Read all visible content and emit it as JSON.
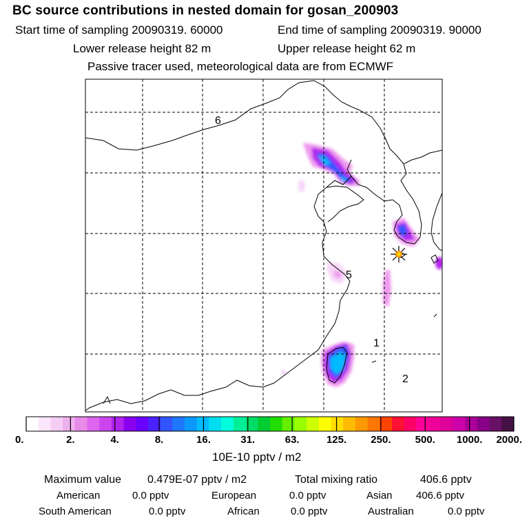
{
  "header": {
    "title": "BC  source contributions in nested domain for gosan_200903",
    "start_label": "Start time of sampling 20090319. 60000",
    "end_label": "End time of sampling 20090319. 90000",
    "lower_label": "Lower release height   82 m",
    "upper_label": "Upper release height   62 m",
    "tracer_label": "Passive tracer used, meteorological data are from ECMWF"
  },
  "chart_data": {
    "type": "heatmap",
    "title": "BC  source contributions in nested domain for gosan_200903",
    "region_labels": [
      "6",
      "5",
      "1",
      "2"
    ],
    "receptor": "gosan",
    "colorbar": {
      "ticks": [
        "0.",
        "2.",
        "4.",
        "8.",
        "16.",
        "31.",
        "63.",
        "125.",
        "250.",
        "500.",
        "1000.",
        "2000."
      ],
      "unit_label": "10E-10 pptv / m2",
      "colors": [
        "#ffffff",
        "#fbe6fb",
        "#f5cdf5",
        "#eeb0ee",
        "#e98be9",
        "#dd66ee",
        "#cc44ee",
        "#b022ee",
        "#8a00ee",
        "#6a00ff",
        "#4a22ff",
        "#3355ff",
        "#1f77ff",
        "#0a99ff",
        "#00bbff",
        "#00ddee",
        "#00ffdd",
        "#00ee99",
        "#00dd66",
        "#00cc33",
        "#22dd00",
        "#66ee00",
        "#99ff00",
        "#ccff00",
        "#ffff00",
        "#ffdd00",
        "#ffbb00",
        "#ff9900",
        "#ff7700",
        "#ff4400",
        "#ff1133",
        "#ff0066",
        "#ff0099",
        "#ee0099",
        "#dd0099",
        "#cc00aa",
        "#aa0099",
        "#880088",
        "#661166",
        "#441144"
      ]
    },
    "summary": {
      "max_label": "Maximum value",
      "max_value": "0.479E-07 pptv / m2",
      "total_label": "Total mixing ratio",
      "total_value": "406.6 pptv",
      "sources": [
        {
          "name": "American",
          "value": "0.0 pptv"
        },
        {
          "name": "European",
          "value": "0.0 pptv"
        },
        {
          "name": "Asian",
          "value": "406.6 pptv"
        },
        {
          "name": "South American",
          "value": "0.0 pptv"
        },
        {
          "name": "African",
          "value": "0.0 pptv"
        },
        {
          "name": "Australian",
          "value": "0.0 pptv"
        }
      ]
    }
  }
}
